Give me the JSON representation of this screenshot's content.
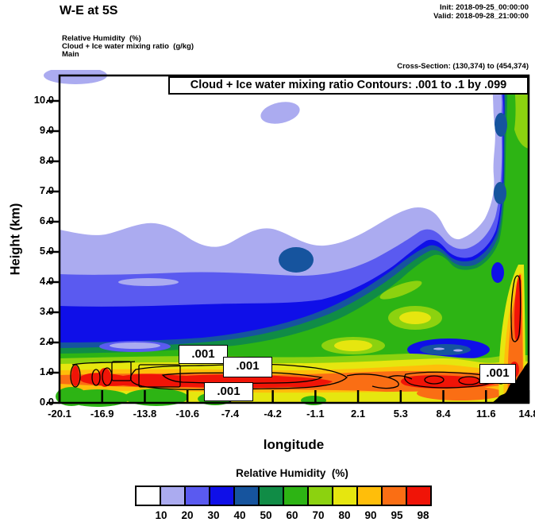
{
  "header": {
    "title": "W-E at 5S",
    "init": "Init: 2018-09-25_00:00:00",
    "valid": "Valid: 2018-09-28_21:00:00"
  },
  "subtitle": {
    "field1": "Relative Humidity  (%)",
    "field2": "Cloud + Ice water mixing ratio  (g/kg)",
    "model": "Main",
    "cross_section": "Cross-Section: (130,374) to (454,374)"
  },
  "plot": {
    "contour_title": "Cloud + Ice water mixing ratio Contours: .001 to .1 by .099",
    "xlabel": "longitude",
    "ylabel": "Height (km)",
    "x_ticks": [
      "-20.1",
      "-16.9",
      "-13.8",
      "-10.6",
      "-7.4",
      "-4.2",
      "-1.1",
      "2.1",
      "5.3",
      "8.4",
      "11.6",
      "14.8"
    ],
    "y_ticks": [
      "10.0",
      "9.0",
      "8.0",
      "7.0",
      "6.0",
      "5.0",
      "4.0",
      "3.0",
      "2.0",
      "1.0",
      "0.0"
    ],
    "contour_labels": [
      ".001",
      ".001",
      ".001",
      ".001"
    ]
  },
  "legend": {
    "title": "Relative Humidity  (%)",
    "labels": [
      "10",
      "20",
      "30",
      "40",
      "50",
      "60",
      "70",
      "80",
      "90",
      "95",
      "98"
    ],
    "colors": [
      "#FFFFFF",
      "#ABABF0",
      "#5A5AF0",
      "#0F0FE8",
      "#16549E",
      "#108C46",
      "#2DB414",
      "#8CD20F",
      "#E6E60F",
      "#FFBE0A",
      "#FA6E14",
      "#F01407"
    ]
  },
  "chart_data": {
    "type": "heatmap",
    "subtype": "filled-contour vertical cross-section",
    "title": "W-E at 5S",
    "fields": [
      {
        "name": "Relative Humidity",
        "units": "%",
        "render": "filled contours",
        "levels": [
          10,
          20,
          30,
          40,
          50,
          60,
          70,
          80,
          90,
          95,
          98
        ],
        "palette": [
          "#FFFFFF",
          "#ABABF0",
          "#5A5AF0",
          "#0F0FE8",
          "#16549E",
          "#108C46",
          "#2DB414",
          "#8CD20F",
          "#E6E60F",
          "#FFBE0A",
          "#FA6E14",
          "#F01407"
        ]
      },
      {
        "name": "Cloud + Ice water mixing ratio",
        "units": "g/kg",
        "render": "black line contours",
        "contour_from": 0.001,
        "contour_to": 0.1,
        "contour_by": 0.099,
        "labeled_value": ".001"
      }
    ],
    "xlabel": "longitude",
    "ylabel": "Height (km)",
    "x_ticks": [
      -20.1,
      -16.9,
      -13.8,
      -10.6,
      -7.4,
      -4.2,
      -1.1,
      2.1,
      5.3,
      8.4,
      11.6,
      14.8
    ],
    "y_ticks": [
      0,
      1,
      2,
      3,
      4,
      5,
      6,
      7,
      8,
      9,
      10
    ],
    "xlim": [
      -20.1,
      14.8
    ],
    "ylim": [
      0,
      10.8
    ],
    "grid": false,
    "legend_position": "bottom colorbar",
    "features": [
      "Very dry air (RH<10%) fills the upper-left half and a second dry pocket aloft on the upper right",
      "Moist layer (RH 30-50%) slopes from ~3 km on the left up toward 8-10 km on the right",
      "Deep moist green column (RH 60-80%) along the eastern edge from surface to model top",
      "Shallow very moist layer (RH>90-98%, red cores) near 0.5-1.5 km with cloud-water contour loops labeled .001",
      "Elevated blue moist lens near 1.5 km around longitude 8",
      "Black terrain silhouette rising near longitude 13-14.8 at lower right"
    ]
  }
}
